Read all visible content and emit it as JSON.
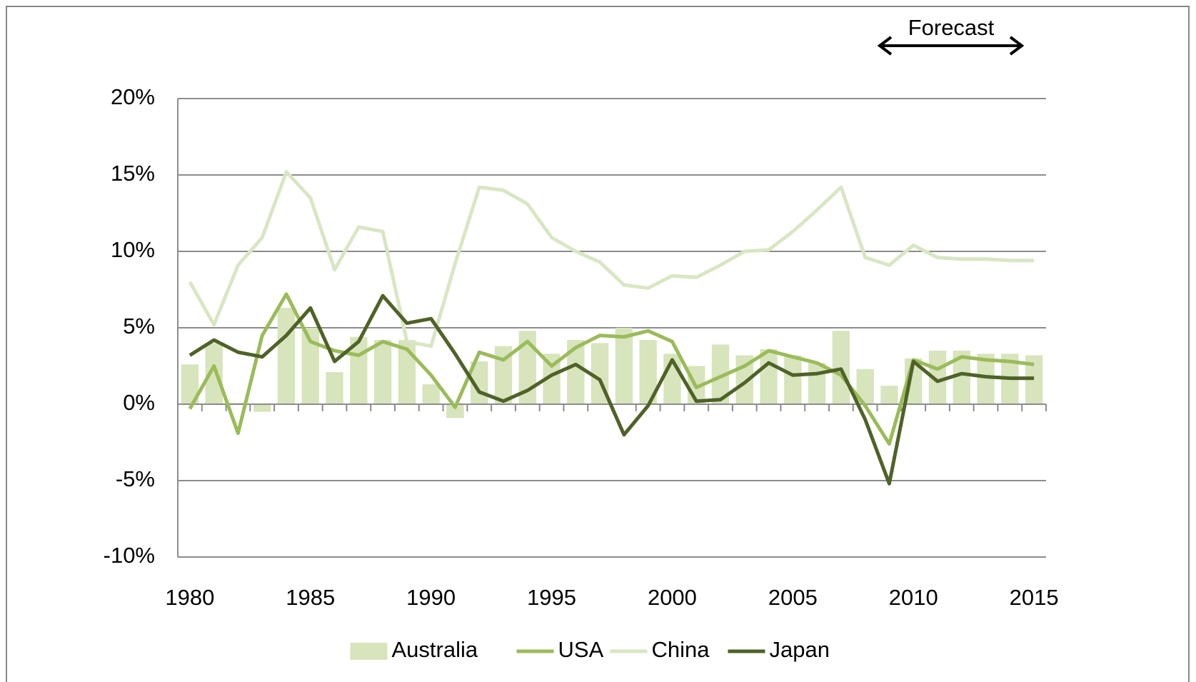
{
  "chart_data": {
    "type": "bar",
    "annotation": "Forecast",
    "categories": [
      "1980",
      null,
      null,
      null,
      null,
      "1985",
      null,
      null,
      null,
      null,
      "1990",
      null,
      null,
      null,
      null,
      "1995",
      null,
      null,
      null,
      null,
      "2000",
      null,
      null,
      null,
      null,
      "2005",
      null,
      null,
      null,
      null,
      "2010",
      null,
      null,
      null,
      null,
      "2015"
    ],
    "series": [
      {
        "name": "Australia",
        "type": "bar",
        "color": "#d7e4bc",
        "values": [
          2.6,
          4.0,
          0.1,
          -0.5,
          6.3,
          5.0,
          2.1,
          4.4,
          4.2,
          4.2,
          1.3,
          -0.9,
          2.8,
          3.8,
          4.8,
          3.3,
          4.2,
          4.0,
          5.0,
          4.2,
          3.3,
          2.5,
          3.9,
          3.2,
          3.6,
          3.2,
          2.7,
          4.8,
          2.3,
          1.2,
          3.0,
          3.5,
          3.5,
          3.3,
          3.3,
          3.2
        ]
      },
      {
        "name": "USA",
        "type": "line",
        "color": "#9bbb59",
        "values": [
          -0.3,
          2.5,
          -1.9,
          4.5,
          7.2,
          4.1,
          3.5,
          3.2,
          4.1,
          3.6,
          1.9,
          -0.2,
          3.4,
          2.9,
          4.1,
          2.5,
          3.7,
          4.5,
          4.4,
          4.8,
          4.1,
          1.1,
          1.8,
          2.5,
          3.5,
          3.1,
          2.7,
          1.9,
          -0.1,
          -2.6,
          2.9,
          2.3,
          3.1,
          2.9,
          2.8,
          2.6
        ]
      },
      {
        "name": "China",
        "type": "line",
        "color": "#d9e6c4",
        "values": [
          8.0,
          5.2,
          9.1,
          10.9,
          15.2,
          13.5,
          8.8,
          11.6,
          11.3,
          4.1,
          3.8,
          9.2,
          14.2,
          14.0,
          13.1,
          10.9,
          10.0,
          9.3,
          7.8,
          7.6,
          8.4,
          8.3,
          9.1,
          10.0,
          10.1,
          11.3,
          12.7,
          14.2,
          9.6,
          9.1,
          10.4,
          9.6,
          9.5,
          9.5,
          9.4,
          9.4
        ]
      },
      {
        "name": "Japan",
        "type": "line",
        "color": "#4f6228",
        "values": [
          3.2,
          4.2,
          3.4,
          3.1,
          4.5,
          6.3,
          2.8,
          4.1,
          7.1,
          5.3,
          5.6,
          3.3,
          0.8,
          0.2,
          0.9,
          1.9,
          2.6,
          1.6,
          -2.0,
          -0.1,
          2.9,
          0.2,
          0.3,
          1.4,
          2.7,
          1.9,
          2.0,
          2.3,
          -1.0,
          -5.2,
          2.8,
          1.5,
          2.0,
          1.8,
          1.7,
          1.7
        ]
      }
    ],
    "ylim": [
      -10,
      20
    ],
    "yticks": [
      {
        "value": -10,
        "label": "-10%"
      },
      {
        "value": -5,
        "label": "-5%"
      },
      {
        "value": 0,
        "label": "0%"
      },
      {
        "value": 5,
        "label": "5%"
      },
      {
        "value": 10,
        "label": "10%"
      },
      {
        "value": 15,
        "label": "15%"
      },
      {
        "value": 20,
        "label": "20%"
      }
    ],
    "grid": true,
    "legend": "bottom"
  }
}
